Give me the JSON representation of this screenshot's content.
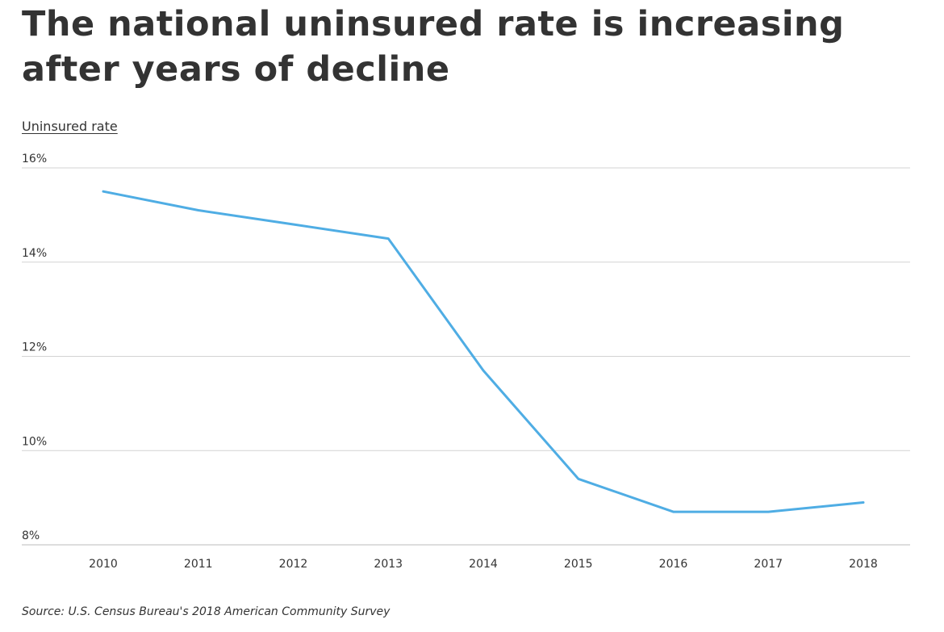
{
  "chart_data": {
    "type": "line",
    "title": "The national uninsured rate is increasing after years of decline",
    "ylabel": "Uninsured rate",
    "source": "Source:  U.S. Census Bureau's 2018 American Community Survey",
    "categories": [
      "2010",
      "2011",
      "2012",
      "2013",
      "2014",
      "2015",
      "2016",
      "2017",
      "2018"
    ],
    "series": [
      {
        "values": [
          15.5,
          15.1,
          14.8,
          14.5,
          11.7,
          9.4,
          8.7,
          8.7,
          8.9
        ]
      }
    ],
    "ylim": [
      8,
      16
    ],
    "yticks": [
      16,
      14,
      12,
      10,
      8
    ],
    "ytick_labels": [
      "16%",
      "14%",
      "12%",
      "10%",
      "8%"
    ],
    "grid": true,
    "colors": {
      "line": "#4fade4",
      "grid": "#d3d3d3",
      "axis": "#bbbbbb"
    }
  }
}
